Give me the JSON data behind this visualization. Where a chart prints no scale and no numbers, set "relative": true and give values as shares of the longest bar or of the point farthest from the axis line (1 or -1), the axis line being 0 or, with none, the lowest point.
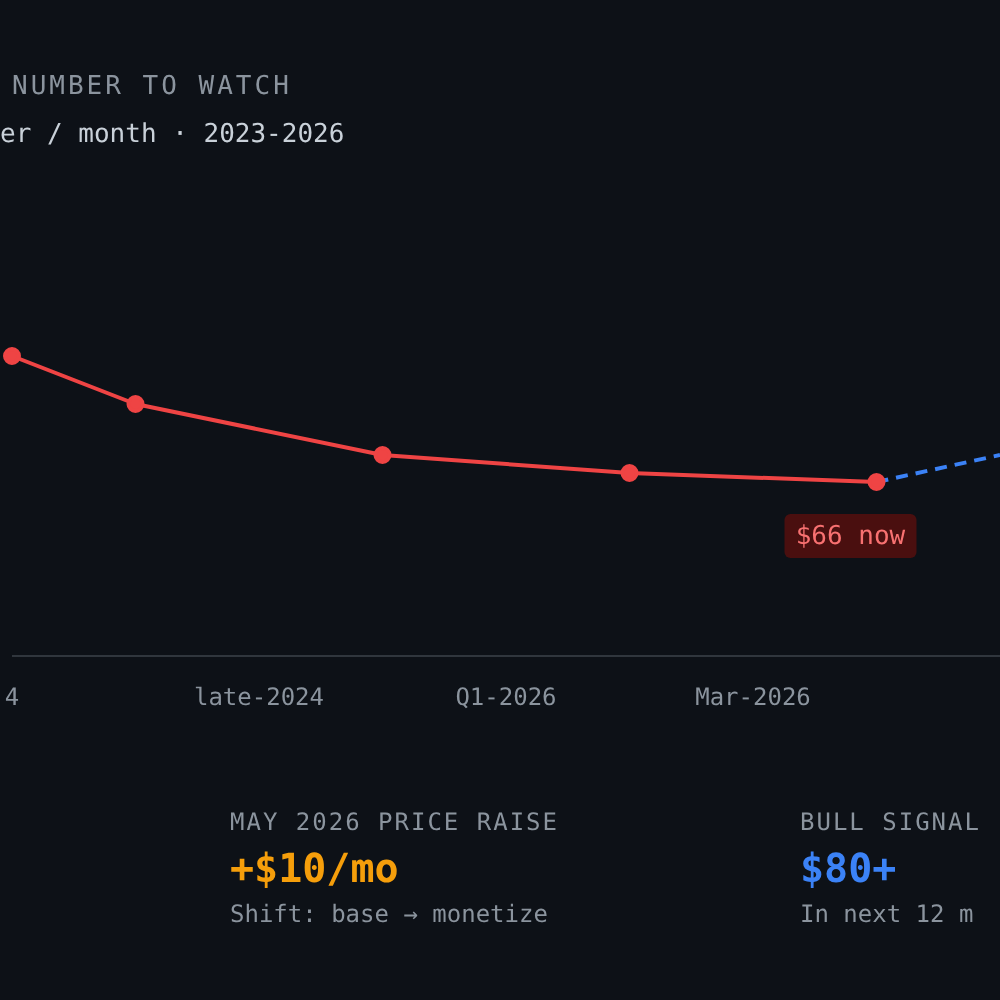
{
  "chart_data": {
    "type": "line",
    "title": "NUMBER TO WATCH",
    "subtitle": "er / month · 2023-2026",
    "relative": true,
    "categories": [
      "4",
      null,
      "late-2024",
      null,
      "Q1-2026",
      null,
      "Mar-2026",
      null,
      null
    ],
    "series": [
      {
        "color": "#ef4444",
        "values": [
          1,
          0.84,
          null,
          0.67,
          null,
          0.61,
          null,
          0.58,
          null
        ],
        "marker": "circle",
        "line_style": "solid"
      },
      {
        "color": "#3b82f6",
        "values": [
          null,
          null,
          null,
          null,
          null,
          null,
          null,
          0.58,
          0.67
        ],
        "marker": "none",
        "line_style": "dashed"
      }
    ],
    "annotations": [
      {
        "text": "$66 now",
        "y": 0.58
      },
      "MAY 2026 PRICE RAISE",
      "+$10/mo",
      "Shift: base → monetize",
      "BULL SIGNAL",
      "$80+",
      "In next 12 m"
    ]
  }
}
